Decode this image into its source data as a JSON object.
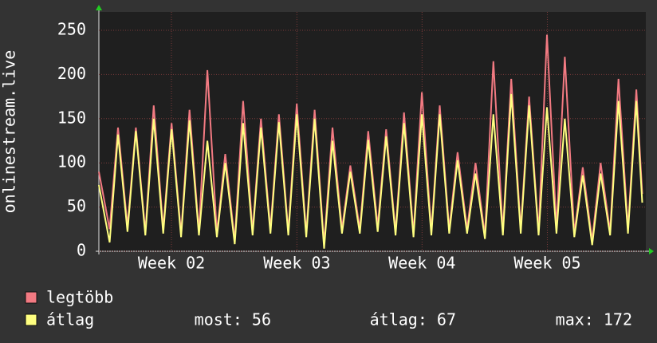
{
  "chart_data": {
    "type": "line",
    "y_label": "onlinestream.live",
    "x": [
      0,
      0.6,
      1.07,
      1.6,
      2.07,
      2.6,
      3.07,
      3.6,
      4.07,
      4.6,
      5.07,
      5.6,
      6.07,
      6.6,
      7.07,
      7.6,
      8.07,
      8.6,
      9.07,
      9.6,
      10.07,
      10.6,
      11.07,
      11.6,
      12.07,
      12.6,
      13.07,
      13.6,
      14.07,
      14.6,
      15.07,
      15.6,
      16.07,
      16.6,
      17.07,
      17.6,
      18.07,
      18.6,
      19.07,
      19.6,
      20.07,
      20.6,
      21.07,
      21.6,
      22.07,
      22.6,
      23.07,
      23.6,
      24.07,
      24.6,
      25.07,
      25.6,
      26.07,
      26.6,
      27.07,
      27.6,
      28.07,
      28.6,
      29.07,
      29.6,
      30.07,
      30.4
    ],
    "series": [
      {
        "name": "legtöbb",
        "color": "#f27a82",
        "values": [
          90,
          25,
          140,
          28,
          140,
          22,
          165,
          25,
          145,
          20,
          160,
          22,
          205,
          20,
          110,
          12,
          170,
          22,
          150,
          25,
          155,
          22,
          167,
          20,
          160,
          8,
          140,
          25,
          97,
          25,
          136,
          28,
          138,
          22,
          157,
          20,
          180,
          22,
          165,
          25,
          112,
          25,
          100,
          18,
          215,
          22,
          195,
          25,
          175,
          22,
          245,
          25,
          220,
          20,
          95,
          12,
          100,
          22,
          195,
          25,
          183,
          65
        ]
      },
      {
        "name": "átlag",
        "color": "#ffff80",
        "values": [
          75,
          10,
          132,
          22,
          136,
          18,
          150,
          20,
          138,
          16,
          148,
          18,
          125,
          16,
          100,
          8,
          145,
          18,
          140,
          20,
          146,
          18,
          155,
          16,
          150,
          3,
          125,
          20,
          90,
          20,
          126,
          22,
          130,
          18,
          145,
          16,
          155,
          18,
          155,
          20,
          103,
          20,
          88,
          14,
          155,
          18,
          178,
          20,
          165,
          18,
          163,
          20,
          150,
          16,
          86,
          7,
          88,
          18,
          170,
          20,
          170,
          55
        ]
      }
    ],
    "stats": [
      "most: 56",
      "átlag: 67",
      "max: 172"
    ],
    "xlim": [
      0,
      30.6
    ],
    "xticks": [
      {
        "value": 4.06,
        "label": "Week 02"
      },
      {
        "value": 11.08,
        "label": "Week 03"
      },
      {
        "value": 18.08,
        "label": "Week 04"
      },
      {
        "value": 25.09,
        "label": "Week 05"
      }
    ],
    "ylim": [
      0,
      250
    ],
    "yticks": [
      0,
      50,
      100,
      150,
      200,
      250
    ],
    "grid": true
  }
}
